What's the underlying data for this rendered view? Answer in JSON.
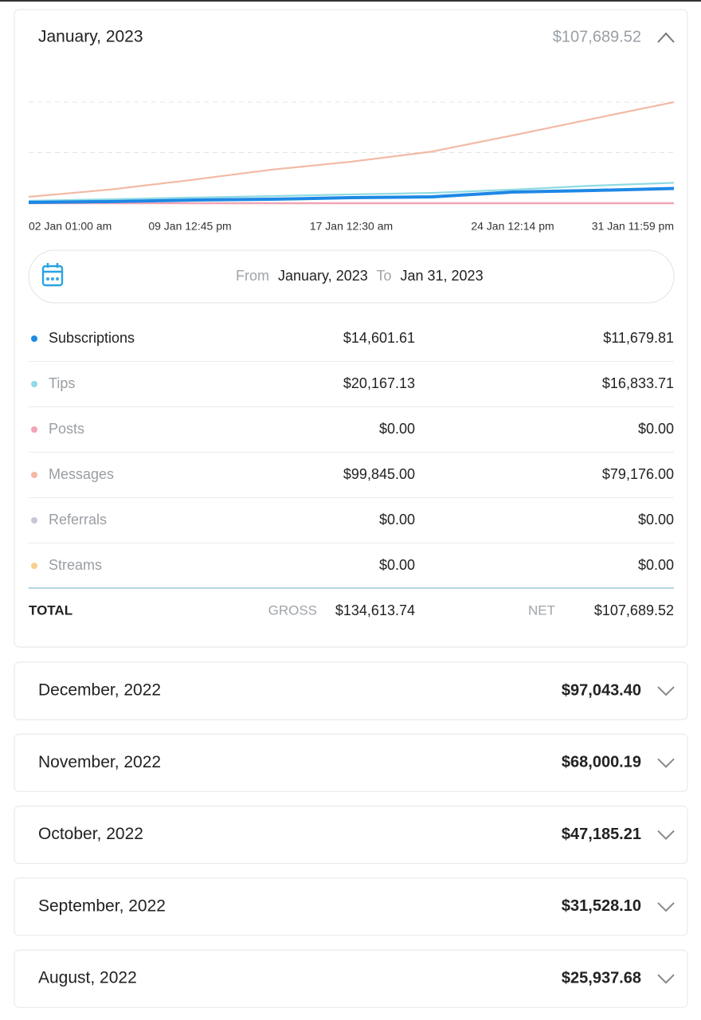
{
  "header": {
    "title": "January, 2023",
    "amount": "$107,689.52"
  },
  "chart_data": {
    "type": "line",
    "x": [
      "02 Jan 01:00 am",
      null,
      "09 Jan 12:45 pm",
      null,
      "17 Jan 12:30 am",
      null,
      "24 Jan 12:14 pm",
      null,
      "31 Jan 11:59 pm"
    ],
    "ylim": [
      0,
      100000
    ],
    "yticks": [
      50000,
      100000
    ],
    "grid": true,
    "series": [
      {
        "name": "Subscriptions",
        "color": "#1e88e5",
        "values": [
          800,
          1600,
          3100,
          3900,
          5500,
          6300,
          11000,
          12600,
          14601
        ]
      },
      {
        "name": "Tips",
        "color": "#8fdbe3",
        "values": [
          2400,
          3900,
          5500,
          7000,
          8700,
          10200,
          13400,
          17300,
          20167
        ]
      },
      {
        "name": "Posts",
        "color": "#f2a3b7",
        "values": [
          0,
          0,
          0,
          0,
          0,
          0,
          0,
          0,
          0
        ]
      },
      {
        "name": "Messages",
        "color": "#f3b9a5",
        "values": [
          6300,
          13400,
          22800,
          33000,
          41000,
          51000,
          67000,
          83500,
          99845
        ]
      },
      {
        "name": "Referrals",
        "color": "#c6c8d6",
        "values": [
          0,
          0,
          0,
          0,
          0,
          0,
          0,
          0,
          0
        ]
      },
      {
        "name": "Streams",
        "color": "#f6d08e",
        "values": [
          0,
          0,
          0,
          0,
          0,
          0,
          0,
          0,
          0
        ]
      }
    ]
  },
  "date_range": {
    "from_label": "From",
    "from": "January, 2023",
    "to_label": "To",
    "to": "Jan 31, 2023"
  },
  "table": {
    "rows": [
      [
        "Subscriptions",
        "$14,601.61",
        "$11,679.81"
      ],
      [
        "Tips",
        "$20,167.13",
        "$16,833.71"
      ],
      [
        "Posts",
        "$0.00",
        "$0.00"
      ],
      [
        "Messages",
        "$99,845.00",
        "$79,176.00"
      ],
      [
        "Referrals",
        "$0.00",
        "$0.00"
      ],
      [
        "Streams",
        "$0.00",
        "$0.00"
      ]
    ]
  },
  "total": {
    "label": "TOTAL",
    "gross_label": "GROSS",
    "gross": "$134,613.74",
    "net_label": "NET",
    "net": "$107,689.52"
  },
  "months": [
    {
      "title": "December, 2022",
      "amount": "$97,043.40"
    },
    {
      "title": "November, 2022",
      "amount": "$68,000.19"
    },
    {
      "title": "October, 2022",
      "amount": "$47,185.21"
    },
    {
      "title": "September, 2022",
      "amount": "$31,528.10"
    },
    {
      "title": "August, 2022",
      "amount": "$25,937.68"
    }
  ]
}
